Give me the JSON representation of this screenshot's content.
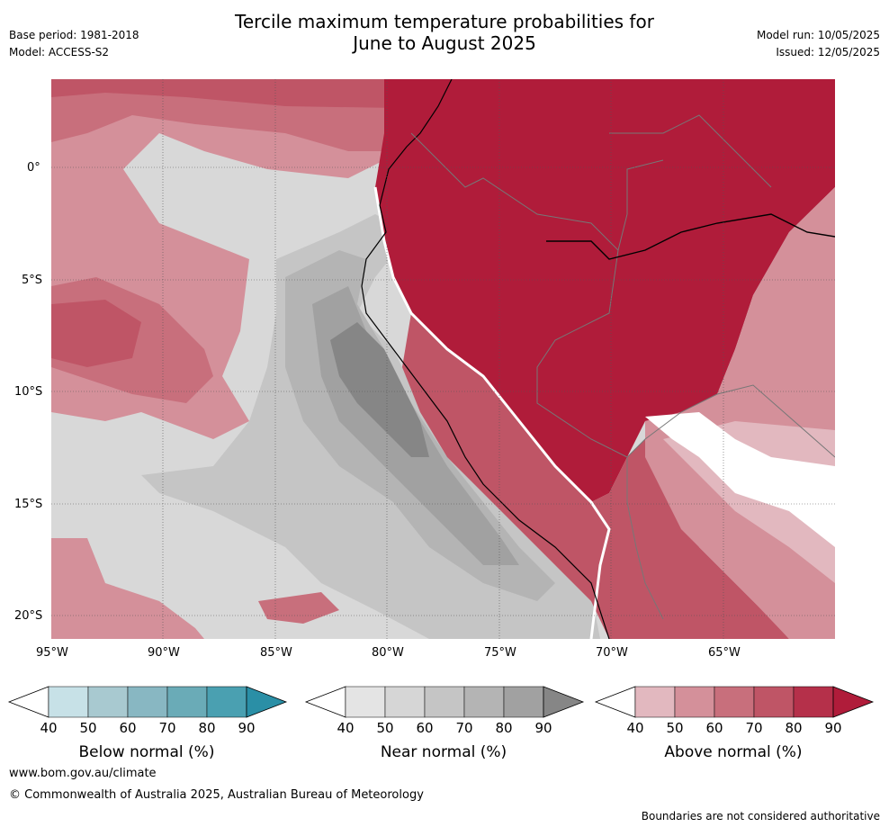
{
  "header": {
    "title_line1": "Tercile maximum temperature probabilities for",
    "title_line2": "June to August 2025",
    "base_period": "Base period: 1981-2018",
    "model": "Model: ACCESS-S2",
    "model_run": "Model run: 10/05/2025",
    "issued": "Issued: 12/05/2025"
  },
  "map": {
    "lat_labels": [
      "0°",
      "5°S",
      "10°S",
      "15°S",
      "20°S"
    ],
    "lon_labels": [
      "95°W",
      "90°W",
      "85°W",
      "80°W",
      "75°W",
      "70°W",
      "65°W"
    ],
    "colors": {
      "above": [
        "#e2b8bf",
        "#d4909a",
        "#c86f7c",
        "#bf5566",
        "#b5304a",
        "#b01c3a"
      ],
      "near": [
        "#e4e4e4",
        "#d6d6d6",
        "#c5c5c5",
        "#b4b4b4",
        "#a1a1a1",
        "#868686"
      ],
      "below": [
        "#c7e1e7",
        "#a8c9d0",
        "#88b7c2",
        "#6aabb7",
        "#4aa0b1",
        "#2a8fa6"
      ]
    }
  },
  "colorbars": [
    {
      "label": "Below normal (%)",
      "ticks": [
        "40",
        "50",
        "60",
        "70",
        "80",
        "90"
      ],
      "colors": [
        "#c7e1e7",
        "#a8c9d0",
        "#88b7c2",
        "#6aabb7",
        "#4aa0b1",
        "#2a8fa6"
      ]
    },
    {
      "label": "Near normal (%)",
      "ticks": [
        "40",
        "50",
        "60",
        "70",
        "80",
        "90"
      ],
      "colors": [
        "#e4e4e4",
        "#d6d6d6",
        "#c5c5c5",
        "#b4b4b4",
        "#a1a1a1",
        "#868686"
      ]
    },
    {
      "label": "Above normal (%)",
      "ticks": [
        "40",
        "50",
        "60",
        "70",
        "80",
        "90"
      ],
      "colors": [
        "#e2b8bf",
        "#d4909a",
        "#c86f7c",
        "#bf5566",
        "#b5304a",
        "#b01c3a"
      ]
    }
  ],
  "footer": {
    "website": "www.bom.gov.au/climate",
    "copyright": "© Commonwealth of Australia 2025, Australian Bureau of Meteorology",
    "disclaimer": "Boundaries are not considered authoritative"
  }
}
